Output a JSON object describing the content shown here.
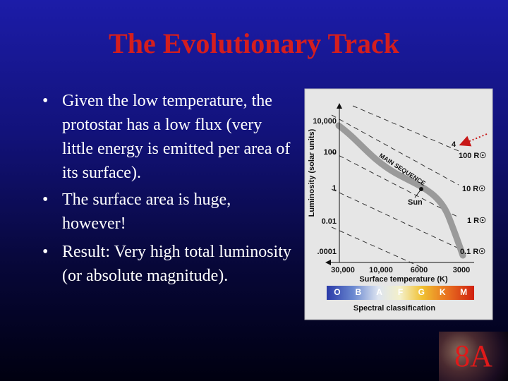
{
  "title": "The Evolutionary Track",
  "bullets": [
    "Given the low temperature, the protostar has a low flux (very little energy is emitted per area of its surface).",
    "The surface area is huge, however!",
    "Result: Very high total luminosity (or absolute magnitude)."
  ],
  "figure": {
    "y_label": "Luminosity (solar units)",
    "y_ticks": [
      "10,000",
      "100",
      "1",
      "0.01",
      ".0001"
    ],
    "x_label": "Surface temperature (K)",
    "x_ticks": [
      "30,000",
      "10,000",
      "6000",
      "3000"
    ],
    "radius_labels": [
      "100 R☉",
      "10 R☉",
      "1 R☉",
      "0.1 R☉"
    ],
    "main_sequence": "MAIN SEQUENCE",
    "sun": "Sun",
    "point": "4",
    "spectral_classes": [
      "O",
      "B",
      "A",
      "F",
      "G",
      "K",
      "M"
    ],
    "spectral_label": "Spectral classification"
  },
  "badge": "8A"
}
